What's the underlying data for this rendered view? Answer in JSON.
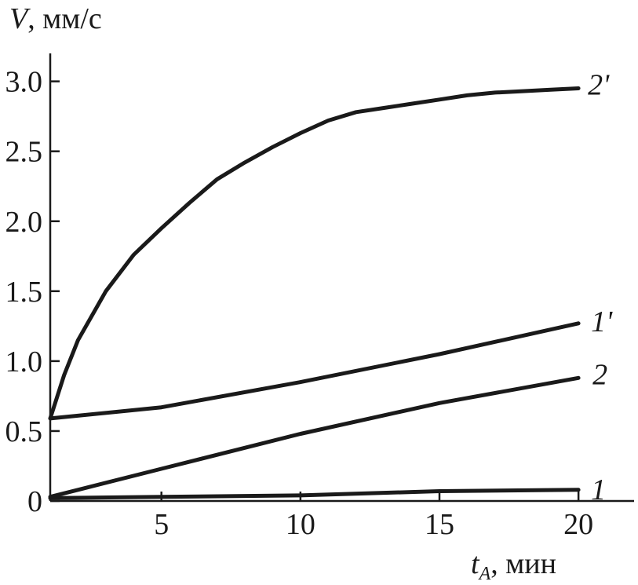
{
  "chart_data": {
    "type": "line",
    "title": "",
    "xlabel": "",
    "ylabel": "",
    "ylabel_parts": {
      "symbol": "V",
      "unit": ", мм/с"
    },
    "xlabel_parts": {
      "symbol": "t",
      "subscript": "A",
      "unit": ", мин"
    },
    "xlim": [
      1,
      22
    ],
    "ylim": [
      0,
      3.2
    ],
    "xticks": [
      5,
      10,
      15,
      20
    ],
    "xtick_labels": [
      "5",
      "10",
      "15",
      "20"
    ],
    "yticks": [
      0,
      0.5,
      1.0,
      1.5,
      2.0,
      2.5,
      3.0
    ],
    "ytick_labels": [
      "0",
      "0.5",
      "1.0",
      "1.5",
      "2.0",
      "2.5",
      "3.0"
    ],
    "grid": false,
    "series": [
      {
        "name": "2'",
        "x": [
          1,
          1.5,
          2,
          3,
          4,
          5,
          6,
          7,
          8,
          9,
          10,
          11,
          12,
          13,
          14,
          15,
          16,
          17,
          18,
          19,
          20
        ],
        "y": [
          0.59,
          0.9,
          1.15,
          1.5,
          1.76,
          1.95,
          2.13,
          2.3,
          2.42,
          2.53,
          2.63,
          2.72,
          2.78,
          2.81,
          2.84,
          2.87,
          2.9,
          2.92,
          2.93,
          2.94,
          2.95
        ]
      },
      {
        "name": "1'",
        "x": [
          1,
          5,
          10,
          15,
          20
        ],
        "y": [
          0.59,
          0.67,
          0.85,
          1.05,
          1.27
        ]
      },
      {
        "name": "2",
        "x": [
          1,
          2,
          5,
          10,
          15,
          20
        ],
        "y": [
          0.03,
          0.08,
          0.23,
          0.48,
          0.7,
          0.88
        ]
      },
      {
        "name": "1",
        "x": [
          1,
          5,
          10,
          15,
          20
        ],
        "y": [
          0.02,
          0.03,
          0.04,
          0.07,
          0.08
        ]
      }
    ]
  }
}
